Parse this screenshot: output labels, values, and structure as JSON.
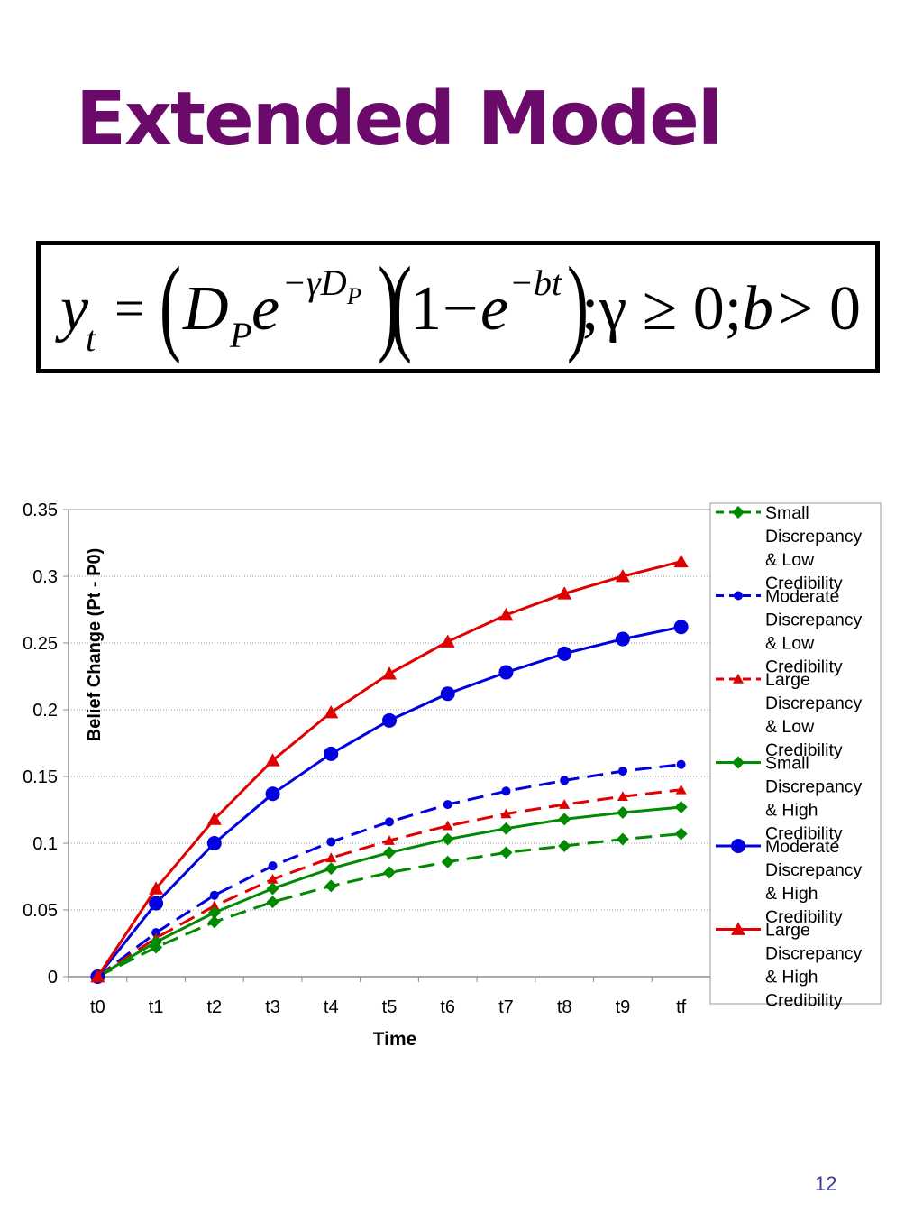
{
  "slide": {
    "title": "Extended Model",
    "page_number": "12",
    "colors": {
      "title": "#6c0a6b",
      "page_number": "#3b3b9a"
    }
  },
  "formula": {
    "lhs_var": "y",
    "lhs_sub": "t",
    "equals": "=",
    "d_var": "D",
    "d_sub": "P",
    "e1": "e",
    "exp1": "−γD",
    "exp1_sub": "P",
    "one": "1",
    "minus": "−",
    "e2": "e",
    "exp2": "−bt",
    "rest": ";γ ≥ 0;",
    "b_var": "b",
    "tail": "> 0"
  },
  "chart_data": {
    "type": "line",
    "categories": [
      "t0",
      "t1",
      "t2",
      "t3",
      "t4",
      "t5",
      "t6",
      "t7",
      "t8",
      "t9",
      "tf"
    ],
    "xlabel": "Time",
    "ylabel": "Belief Change (Pt - P0)",
    "ylim": [
      0,
      0.35
    ],
    "yticks": [
      0,
      0.05,
      0.1,
      0.15,
      0.2,
      0.25,
      0.3,
      0.35
    ],
    "ytick_labels": [
      "0",
      "0.05",
      "0.1",
      "0.15",
      "0.2",
      "0.25",
      "0.3",
      "0.35"
    ],
    "grid": "horizontal-dotted",
    "legend_position": "right",
    "series": [
      {
        "name": "Small Discrepancy & Low Credibility",
        "color": "#008a00",
        "dash": "dashed",
        "marker": "diamond",
        "values": [
          0,
          0.022,
          0.041,
          0.056,
          0.068,
          0.078,
          0.086,
          0.093,
          0.098,
          0.103,
          0.107
        ]
      },
      {
        "name": "Moderate Discrepancy & Low Credibility",
        "color": "#0000e0",
        "dash": "dashed",
        "marker": "small-circle",
        "values": [
          0,
          0.033,
          0.061,
          0.083,
          0.101,
          0.116,
          0.129,
          0.139,
          0.147,
          0.154,
          0.159
        ]
      },
      {
        "name": "Large Discrepancy & Low Credibility",
        "color": "#e00000",
        "dash": "dashed",
        "marker": "small-triangle",
        "values": [
          0,
          0.029,
          0.053,
          0.073,
          0.089,
          0.102,
          0.113,
          0.122,
          0.129,
          0.135,
          0.14
        ]
      },
      {
        "name": "Small Discrepancy & High Credibility",
        "color": "#008a00",
        "dash": "solid",
        "marker": "diamond",
        "values": [
          0,
          0.026,
          0.048,
          0.066,
          0.081,
          0.093,
          0.103,
          0.111,
          0.118,
          0.123,
          0.127
        ]
      },
      {
        "name": "Moderate Discrepancy & High Credibility",
        "color": "#0000e0",
        "dash": "solid",
        "marker": "large-circle",
        "values": [
          0,
          0.055,
          0.1,
          0.137,
          0.167,
          0.192,
          0.212,
          0.228,
          0.242,
          0.253,
          0.262
        ]
      },
      {
        "name": "Large Discrepancy & High Credibility",
        "color": "#e00000",
        "dash": "solid",
        "marker": "large-triangle",
        "values": [
          0,
          0.066,
          0.118,
          0.162,
          0.198,
          0.227,
          0.251,
          0.271,
          0.287,
          0.3,
          0.311
        ]
      }
    ],
    "legend_lines": [
      [
        "Small",
        "Discrepancy",
        "& Low",
        "Credibility"
      ],
      [
        "Moderate",
        "Discrepancy",
        "& Low",
        "Credibility"
      ],
      [
        "Large",
        "Discrepancy",
        "& Low",
        "Credibility"
      ],
      [
        "Small",
        "Discrepancy",
        "& High",
        "Credibility"
      ],
      [
        "Moderate",
        "Discrepancy",
        "& High",
        "Credibility"
      ],
      [
        "Large",
        "Discrepancy",
        "& High",
        "Credibility"
      ]
    ]
  }
}
